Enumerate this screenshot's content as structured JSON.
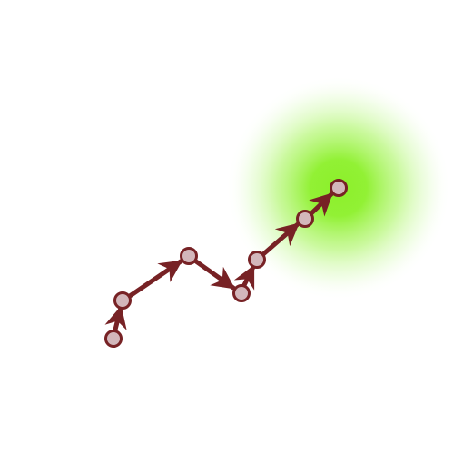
{
  "scene": {
    "background_color": "#ffffff",
    "goal": {
      "type": "radial-glow",
      "center_color": "#8cf02a",
      "edge_color": "#ffffff"
    },
    "path": {
      "node_count": 7,
      "node_fill": "#d3b7bb",
      "node_stroke": "#772225",
      "edge_color": "#772225",
      "arrowheads": true
    }
  }
}
